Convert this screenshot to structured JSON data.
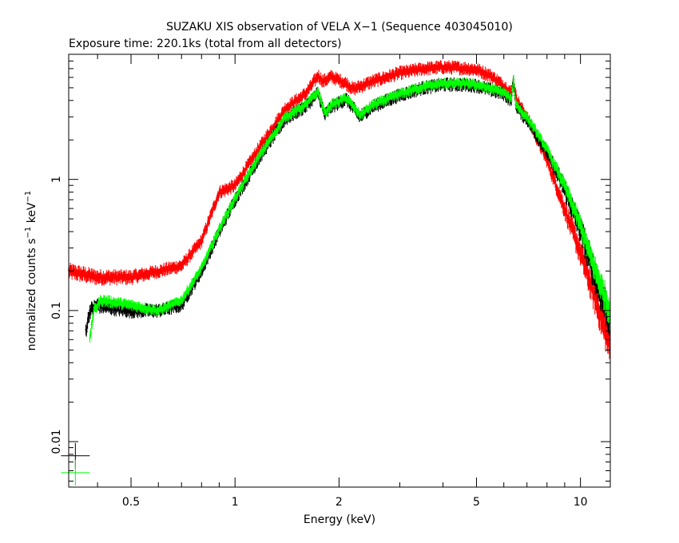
{
  "chart_data": {
    "type": "scatter",
    "title": "SUZAKU XIS observation of VELA X−1 (Sequence 403045010)",
    "subtitle": "Exposure time: 220.1ks (total from all detectors)",
    "xlabel": "Energy (keV)",
    "ylabel_main": "normalized counts s",
    "ylabel_mid": " keV",
    "ylabel_sup": "−1",
    "x_scale": "log",
    "y_scale": "log",
    "xlim": [
      0.33,
      12.2
    ],
    "ylim": [
      0.0045,
      9
    ],
    "grid": false,
    "x_ticks": [
      {
        "value": 0.5,
        "label": "0.5"
      },
      {
        "value": 1,
        "label": "1"
      },
      {
        "value": 2,
        "label": "2"
      },
      {
        "value": 5,
        "label": "5"
      },
      {
        "value": 10,
        "label": "10"
      }
    ],
    "y_ticks": [
      {
        "value": 0.01,
        "label": "0.01"
      },
      {
        "value": 0.1,
        "label": "0.1"
      },
      {
        "value": 1,
        "label": "1"
      }
    ],
    "series": [
      {
        "color": "#ff0000",
        "x_min": 0.33,
        "x_max": 12.2,
        "x": [
          0.33,
          0.4,
          0.5,
          0.6,
          0.7,
          0.8,
          0.9,
          1.0,
          1.2,
          1.4,
          1.6,
          1.74,
          1.8,
          1.9,
          2.1,
          2.2,
          2.5,
          3.0,
          3.5,
          4.0,
          4.5,
          5.0,
          5.5,
          6.0,
          6.3,
          6.4,
          6.5,
          6.7,
          7.0,
          8.0,
          9.0,
          10.0,
          11.0,
          12.2
        ],
        "values": [
          0.2,
          0.18,
          0.18,
          0.2,
          0.22,
          0.34,
          0.8,
          0.9,
          1.9,
          3.5,
          4.5,
          6.2,
          5.6,
          6.1,
          5.4,
          4.9,
          5.6,
          6.5,
          7.0,
          7.2,
          7.1,
          6.9,
          6.2,
          5.2,
          4.6,
          5.6,
          4.3,
          3.6,
          3.0,
          1.4,
          0.6,
          0.28,
          0.13,
          0.055
        ],
        "noise": 0.05
      },
      {
        "color": "#000000",
        "x_min": 0.37,
        "x_max": 12.2,
        "x": [
          0.37,
          0.38,
          0.4,
          0.5,
          0.6,
          0.7,
          0.8,
          0.9,
          1.0,
          1.2,
          1.4,
          1.6,
          1.74,
          1.82,
          1.9,
          2.1,
          2.3,
          2.5,
          3.0,
          3.5,
          4.0,
          4.5,
          5.0,
          6.0,
          6.3,
          6.4,
          6.5,
          6.8,
          7.0,
          8.0,
          9.0,
          10.0,
          11.0,
          12.2
        ],
        "values": [
          0.07,
          0.1,
          0.11,
          0.1,
          0.1,
          0.11,
          0.2,
          0.4,
          0.7,
          1.6,
          2.9,
          3.6,
          4.6,
          3.1,
          3.6,
          4.1,
          3.0,
          3.6,
          4.4,
          5.0,
          5.3,
          5.3,
          5.2,
          4.5,
          4.0,
          5.8,
          3.7,
          3.1,
          2.9,
          1.6,
          0.85,
          0.42,
          0.19,
          0.09
        ],
        "noise": 0.05
      },
      {
        "color": "#00ff00",
        "x_min": 0.38,
        "x_max": 12.2,
        "x": [
          0.38,
          0.39,
          0.41,
          0.5,
          0.6,
          0.7,
          0.8,
          0.9,
          1.0,
          1.2,
          1.4,
          1.6,
          1.74,
          1.82,
          1.9,
          2.1,
          2.3,
          2.5,
          3.0,
          3.5,
          4.0,
          4.5,
          5.0,
          6.0,
          6.3,
          6.4,
          6.5,
          6.8,
          7.0,
          8.0,
          9.0,
          10.0,
          11.0,
          12.2
        ],
        "values": [
          0.06,
          0.1,
          0.12,
          0.11,
          0.1,
          0.12,
          0.21,
          0.42,
          0.72,
          1.65,
          3.0,
          3.7,
          4.7,
          3.2,
          3.7,
          4.2,
          3.1,
          3.7,
          4.5,
          5.1,
          5.4,
          5.4,
          5.3,
          4.6,
          4.1,
          5.9,
          3.8,
          3.2,
          3.0,
          1.7,
          0.9,
          0.45,
          0.21,
          0.1
        ],
        "noise": 0.04
      }
    ],
    "legend_markers": [
      {
        "color": "#000000",
        "x": 0.345,
        "y": 0.0078
      },
      {
        "color": "#00ff00",
        "x": 0.345,
        "y": 0.0058
      }
    ]
  }
}
